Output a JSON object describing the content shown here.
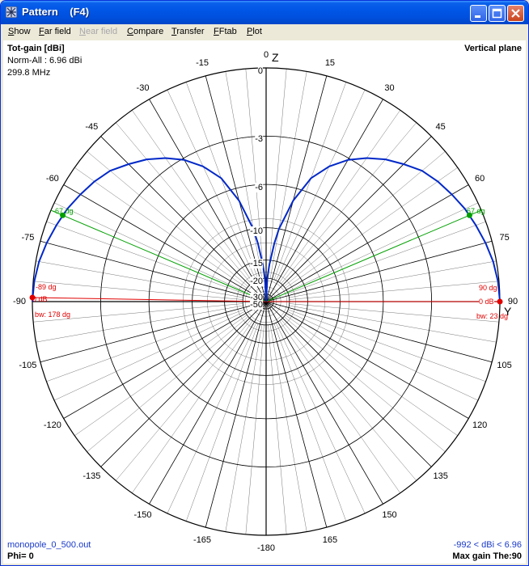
{
  "window": {
    "title": "Pattern    (F4)"
  },
  "menu": {
    "show": {
      "first": "S",
      "rest": "how"
    },
    "far_field": {
      "first": "F",
      "rest": "ar field"
    },
    "near_field": {
      "first": "N",
      "rest": "ear field"
    },
    "compare": {
      "first": "C",
      "rest": "ompare"
    },
    "transfer": {
      "first": "T",
      "rest": "ransfer"
    },
    "fftab": {
      "first": "F",
      "rest": "Ftab"
    },
    "plot": {
      "first": "P",
      "rest": "lot"
    }
  },
  "header": {
    "quantity": "Tot-gain [dBi]",
    "norm": "Norm-All : 6.96 dBi",
    "frequency": "299.8 MHz",
    "plane": "Vertical plane"
  },
  "footer": {
    "filename": "monopole_0_500.out",
    "phi": "Phi= 0",
    "range": "-992 < dBi < 6.96",
    "max_gain": "Max gain The:90"
  },
  "colors": {
    "pattern": "#0028C8",
    "beam": "#00A000",
    "marker": "#E00000",
    "grid": "#000000",
    "info": "#1A3AC8"
  },
  "chart_data": {
    "type": "polar",
    "plane": "vertical",
    "angle_unit": "deg",
    "axis_labels": {
      "vertical": "Z",
      "horizontal": "Y"
    },
    "angle_ticks": [
      "0",
      "15",
      "30",
      "45",
      "60",
      "75",
      "90",
      "105",
      "120",
      "135",
      "150",
      "165",
      "-180",
      "-165",
      "-150",
      "-135",
      "-120",
      "-105",
      "-90",
      "-75",
      "-60",
      "-45",
      "-30",
      "-15"
    ],
    "angle_tick_values": [
      0,
      15,
      30,
      45,
      60,
      75,
      90,
      105,
      120,
      135,
      150,
      165,
      180,
      -165,
      -150,
      -135,
      -120,
      -105,
      -90,
      -75,
      -60,
      -45,
      -30,
      -15
    ],
    "radial_ticks": [
      "0",
      "-3",
      "-6",
      "-10",
      "-15",
      "-20",
      "-30",
      "-50"
    ],
    "radial_tick_values": [
      0,
      -3,
      -6,
      -10,
      -15,
      -20,
      -30,
      -50
    ],
    "radial_min_db": -50,
    "series": [
      {
        "theta": [
          0,
          3,
          5,
          8,
          10,
          15,
          20,
          25,
          30,
          35,
          40,
          45,
          50,
          55,
          60,
          65,
          70,
          75,
          80,
          85,
          89,
          90
        ],
        "gain_db": [
          -50,
          -20,
          -16,
          -12,
          -10,
          -7,
          -5,
          -3.9,
          -3.1,
          -2.5,
          -2,
          -1.6,
          -1.2,
          -0.95,
          -0.75,
          -0.55,
          -0.4,
          -0.25,
          -0.12,
          -0.04,
          -0.01,
          0
        ]
      }
    ],
    "markers": {
      "beam_angle_right": "67 dg",
      "beam_angle_left": "-67 dg",
      "beam_angle_values": [
        67,
        -67
      ],
      "max_right": "90 dg",
      "max_left": "-89 dg",
      "max_level_right": "0 dB",
      "max_level_left": "0 dB",
      "bw_right": "bw: 23 dg",
      "bw_left": "bw: 178 dg"
    }
  }
}
